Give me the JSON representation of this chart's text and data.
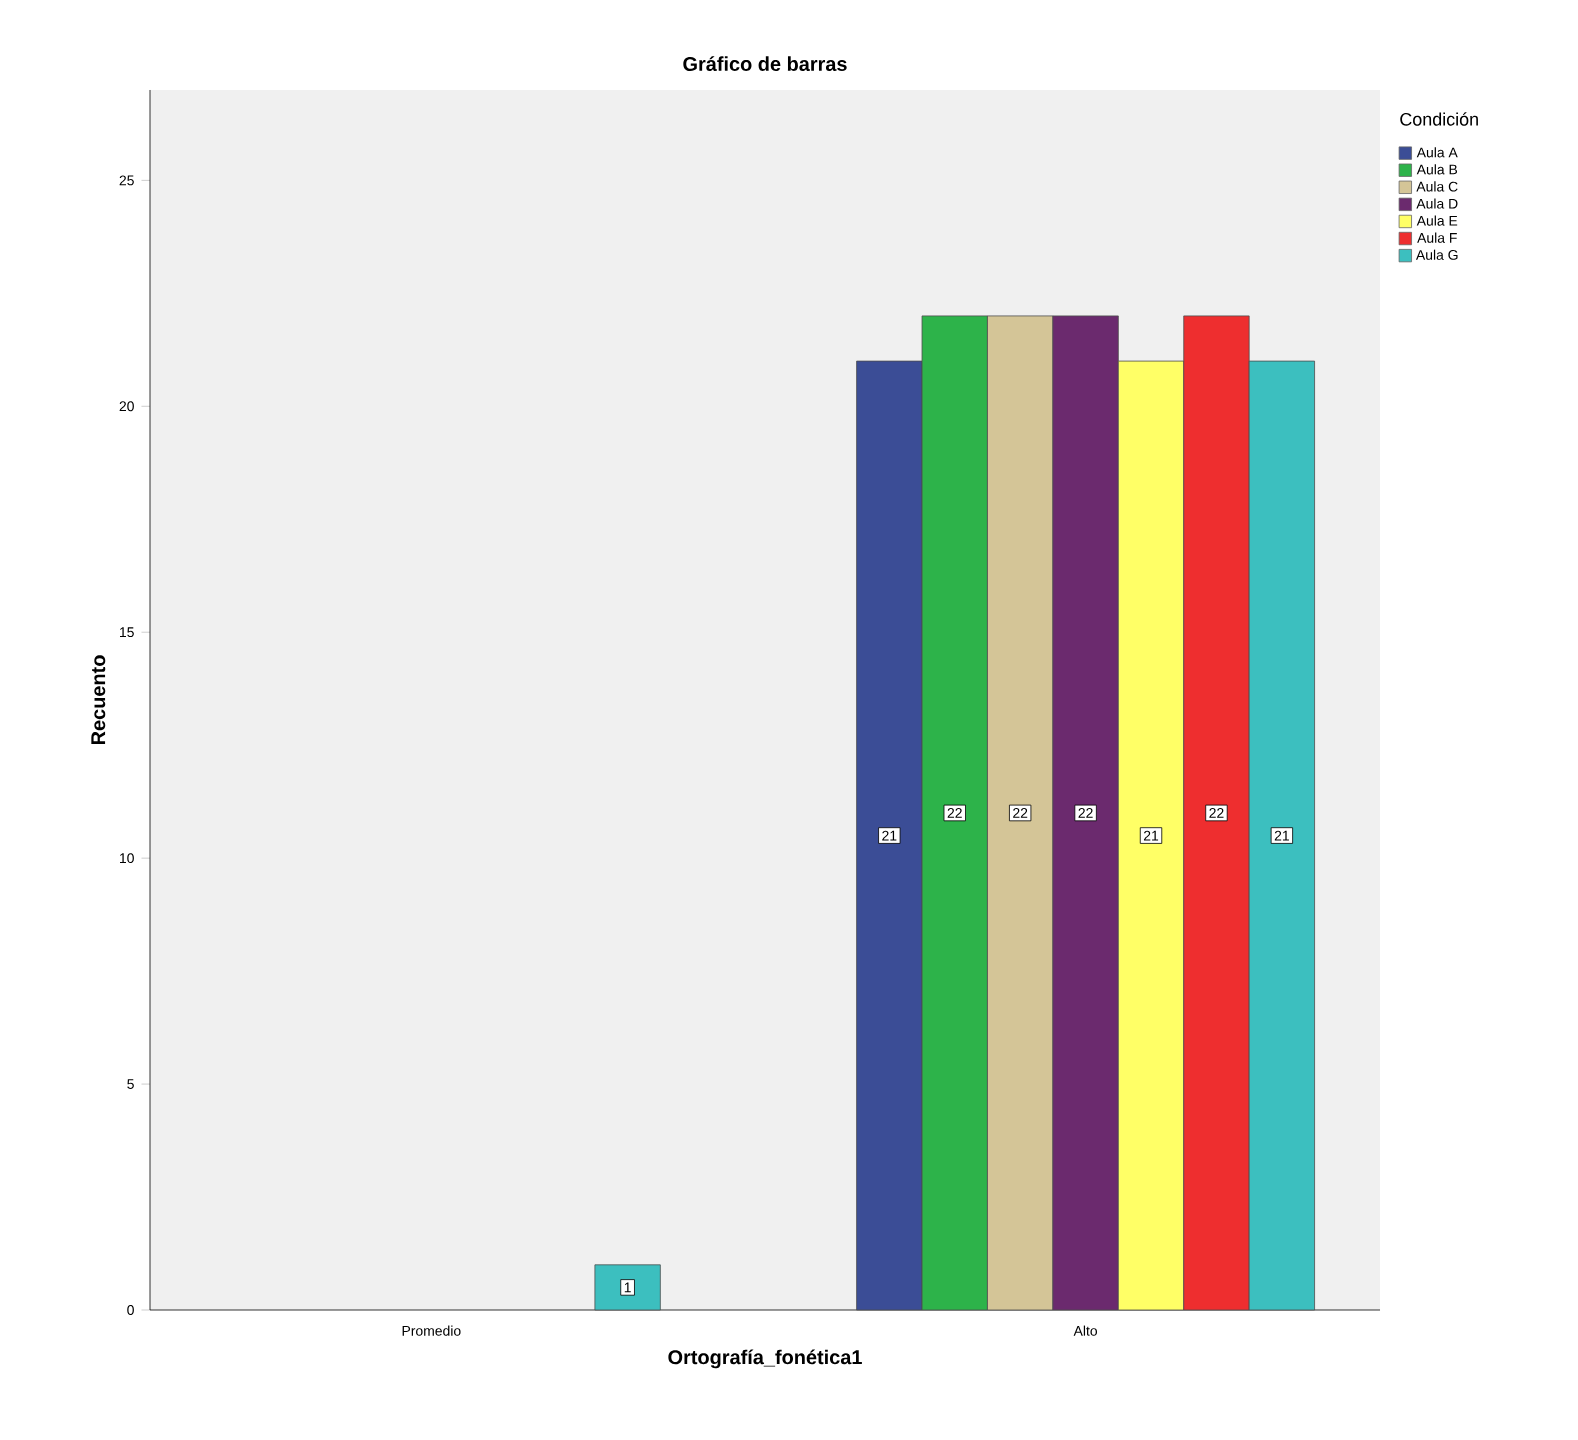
{
  "chart_data": {
    "type": "bar",
    "title": "Gráfico de barras",
    "xlabel": "Ortografía_fonética1",
    "ylabel": "Recuento",
    "legend_title": "Condición",
    "categories": [
      "Promedio",
      "Alto"
    ],
    "series": [
      {
        "name": "Aula A",
        "color": "#3b4d96",
        "values": [
          null,
          21
        ]
      },
      {
        "name": "Aula B",
        "color": "#2db34a",
        "values": [
          null,
          22
        ]
      },
      {
        "name": "Aula C",
        "color": "#d4c597",
        "values": [
          null,
          22
        ]
      },
      {
        "name": "Aula  D",
        "color": "#6b2a6e",
        "values": [
          null,
          22
        ]
      },
      {
        "name": "Aula E",
        "color": "#ffff66",
        "values": [
          null,
          21
        ]
      },
      {
        "name": "Aula F",
        "color": "#ee2e2f",
        "values": [
          null,
          22
        ]
      },
      {
        "name": "Aula G",
        "color": "#3cbfbf",
        "values": [
          1,
          21
        ]
      }
    ],
    "ylim": [
      0,
      27
    ],
    "yticks": [
      0,
      5,
      10,
      15,
      20,
      25
    ],
    "data_labels": true,
    "legend": "right",
    "grid": false
  }
}
